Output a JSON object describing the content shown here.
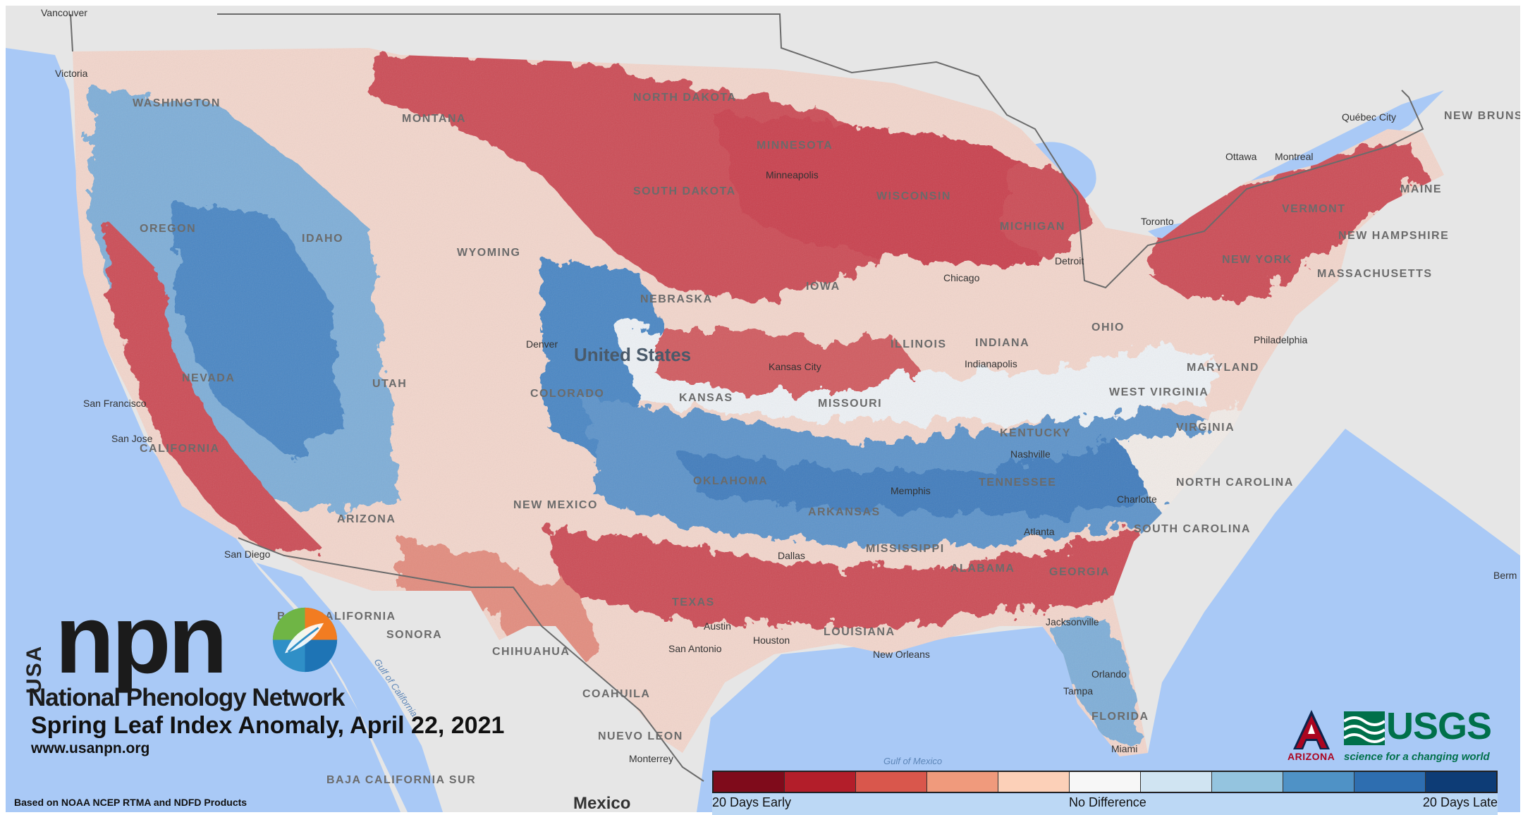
{
  "map": {
    "country_label": "United States",
    "states": [
      "MONTANA",
      "NORTH DAKOTA",
      "MINNESOTA",
      "WISCONSIN",
      "MICHIGAN",
      "SOUTH DAKOTA",
      "WYOMING",
      "IDAHO",
      "OREGON",
      "WASHINGTON",
      "NEBRASKA",
      "IOWA",
      "ILLINOIS",
      "INDIANA",
      "OHIO",
      "COLORADO",
      "KANSAS",
      "MISSOURI",
      "KENTUCKY",
      "WEST VIRGINIA",
      "VIRGINIA",
      "TENNESSEE",
      "NORTH CAROLINA",
      "SOUTH CAROLINA",
      "OKLAHOMA",
      "ARKANSAS",
      "MISSISSIPPI",
      "ALABAMA",
      "GEORGIA",
      "TEXAS",
      "LOUISIANA",
      "FLORIDA",
      "NEW YORK",
      "NEW HAMPSHIRE",
      "VERMONT",
      "MAINE",
      "MASSACHUSETTS",
      "MARYLAND",
      "NEVADA",
      "UTAH",
      "ARIZONA",
      "NEW MEXICO",
      "CALIFORNIA"
    ],
    "cities": [
      "Vancouver",
      "Victoria",
      "Minneapolis",
      "Chicago",
      "Detroit",
      "Toronto",
      "Ottawa",
      "Montreal",
      "Québec City",
      "Denver",
      "Kansas City",
      "Indianapolis",
      "Philadelphia",
      "San Francisco",
      "San Jose",
      "San Diego",
      "Charlotte",
      "Atlanta",
      "Dallas",
      "Houston",
      "Austin",
      "San Antonio",
      "New Orleans",
      "Jacksonville",
      "Orlando",
      "Tampa",
      "Miami",
      "Monterrey",
      "Nashville",
      "Memphis"
    ],
    "foreign_regions": [
      "NEW BRUNSWICK",
      "BAJA CALIFORNIA",
      "SONORA",
      "CHIHUAHUA",
      "COAHUILA",
      "NUEVO LEON",
      "BAJA CALIFORNIA SUR",
      "Mexico",
      "Berm"
    ],
    "water_labels": [
      "Gulf of California",
      "Gulf of Mexico"
    ]
  },
  "branding": {
    "usa": "USA",
    "npn": "npn",
    "network_name": "National Phenology Network",
    "title": "Spring Leaf Index Anomaly, April 22, 2021",
    "website": "www.usanpn.org",
    "source_note": "Based on NOAA NCEP RTMA and NDFD Products",
    "arizona": "ARIZONA",
    "usgs": "USGS",
    "usgs_tagline": "science for a changing world"
  },
  "legend": {
    "label_left": "20 Days Early",
    "label_center": "No Difference",
    "label_right": "20 Days Late",
    "colors": [
      "#7f0b1b",
      "#b31e2a",
      "#d9574c",
      "#f09a7c",
      "#fcd0b8",
      "#f7f7f7",
      "#d0e4f2",
      "#94c4df",
      "#4f92c6",
      "#2e6eb0",
      "#0d3c76"
    ]
  },
  "colors": {
    "water": "#a9c9f6",
    "land": "#e6e6e6",
    "early": "#cc4b55",
    "late": "#4a86c4"
  }
}
